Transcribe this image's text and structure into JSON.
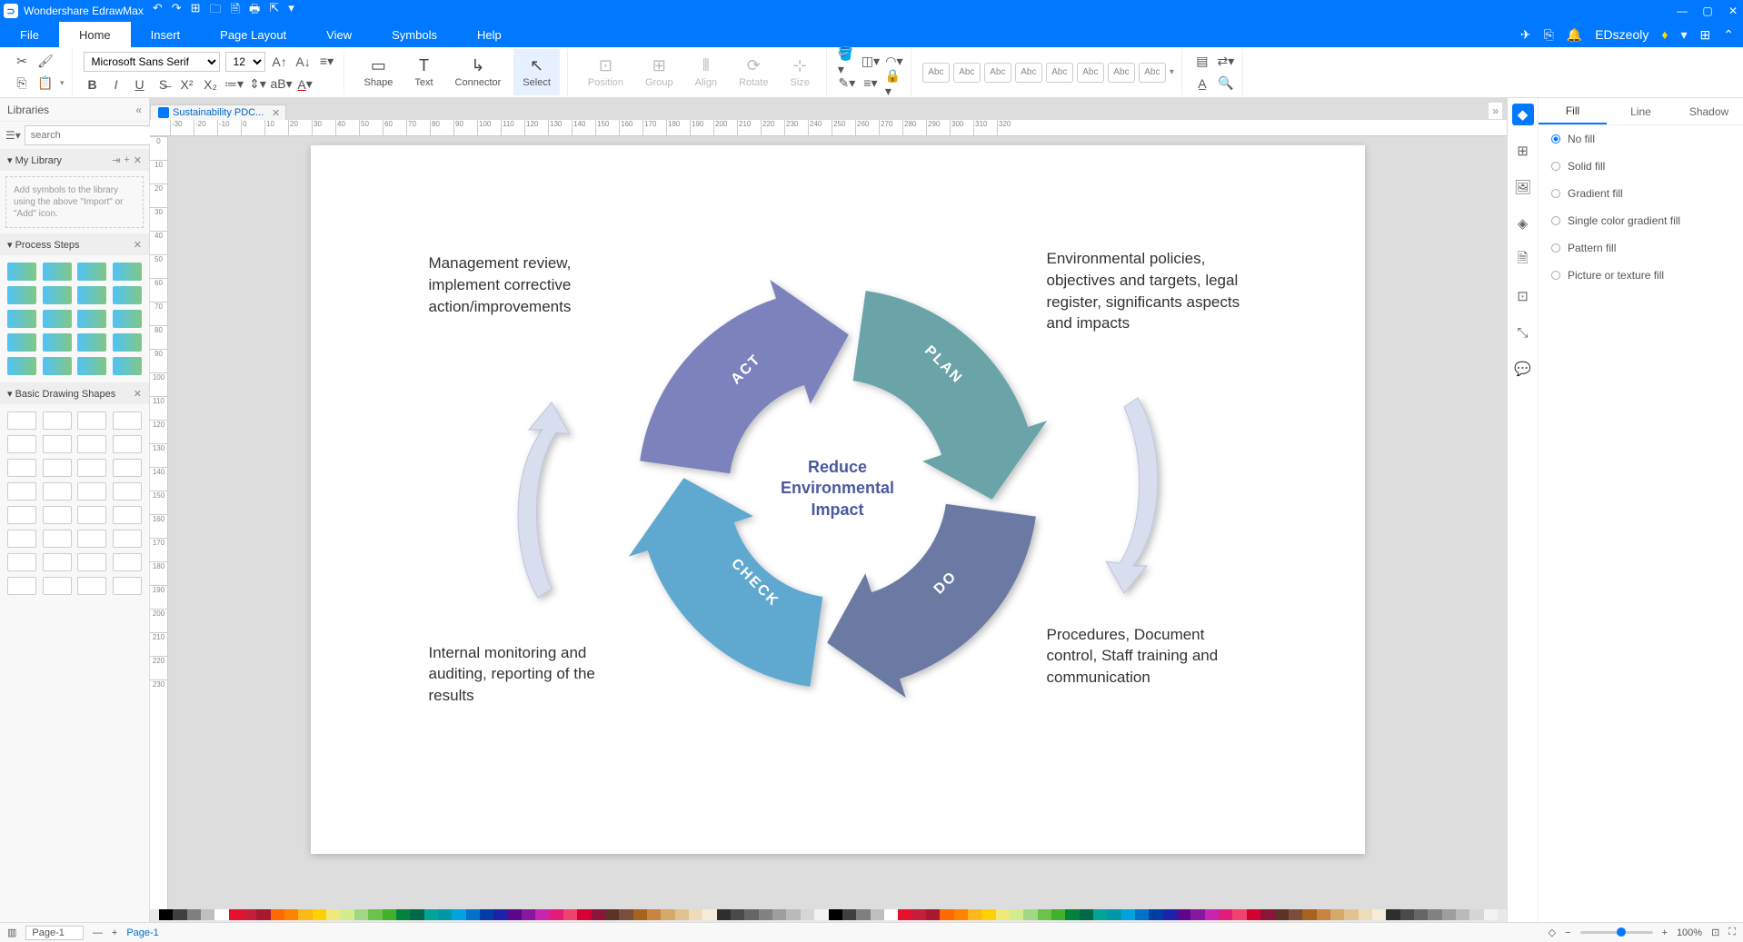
{
  "title_bar": {
    "app_name": "Wondershare EdrawMax",
    "qat_icons": [
      "↶",
      "↷",
      "⊞",
      "🗀",
      "🗎",
      "🖶",
      "⇱",
      "▾"
    ]
  },
  "menu": {
    "items": [
      "File",
      "Home",
      "Insert",
      "Page Layout",
      "View",
      "Symbols",
      "Help"
    ],
    "active_index": 1,
    "user": "EDszeoly"
  },
  "ribbon": {
    "font_name": "Microsoft Sans Serif",
    "font_size": "12",
    "shape_label": "Shape",
    "text_label": "Text",
    "connector_label": "Connector",
    "select_label": "Select",
    "position_label": "Position",
    "group_label": "Group",
    "align_label": "Align",
    "rotate_label": "Rotate",
    "size_label": "Size",
    "style_swatches": [
      "Abc",
      "Abc",
      "Abc",
      "Abc",
      "Abc",
      "Abc",
      "Abc",
      "Abc"
    ]
  },
  "left_panel": {
    "title": "Libraries",
    "search_placeholder": "search",
    "my_library": "My Library",
    "placeholder": "Add symbols to the library using the above \"Import\" or \"Add\" icon.",
    "process_steps": "Process Steps",
    "basic_shapes": "Basic Drawing Shapes"
  },
  "document": {
    "tab_name": "Sustainability PDC...",
    "ruler_marks": [
      "-30",
      "-20",
      "-10",
      "0",
      "10",
      "20",
      "30",
      "40",
      "50",
      "60",
      "70",
      "80",
      "90",
      "100",
      "110",
      "120",
      "130",
      "140",
      "150",
      "160",
      "170",
      "180",
      "190",
      "200",
      "210",
      "220",
      "230",
      "240",
      "250",
      "260",
      "270",
      "280",
      "290",
      "300",
      "310",
      "320"
    ],
    "ruler_v": [
      "0",
      "10",
      "20",
      "30",
      "40",
      "50",
      "60",
      "70",
      "80",
      "90",
      "100",
      "110",
      "120",
      "130",
      "140",
      "150",
      "160",
      "170",
      "180",
      "190",
      "200",
      "210",
      "220",
      "230"
    ]
  },
  "diagram": {
    "center_text": "Reduce Environmental Impact",
    "segments": {
      "act": {
        "label": "ACT",
        "color": "#5fa8cf",
        "desc": "Management review, implement corrective action/improvements"
      },
      "plan": {
        "label": "PLAN",
        "color": "#7b82bb",
        "desc": "Environmental policies, objectives and targets, legal register, significants aspects and impacts"
      },
      "check": {
        "label": "CHECK",
        "color": "#6a7aa3",
        "desc": "Internal monitoring and auditing, reporting of the results"
      },
      "do": {
        "label": "DO",
        "color": "#6ba3a8",
        "desc": "Procedures, Document control, Staff training and communication"
      }
    },
    "side_arrow_color": "#d9deee"
  },
  "right_panel": {
    "tabs": [
      "Fill",
      "Line",
      "Shadow"
    ],
    "active_tab": 0,
    "options": [
      "No fill",
      "Solid fill",
      "Gradient fill",
      "Single color gradient fill",
      "Pattern fill",
      "Picture or texture fill"
    ],
    "selected_option": 0,
    "side_icons": [
      "◆",
      "⊞",
      "🖼",
      "◈",
      "🗎",
      "⇵",
      "⤡",
      "⊡"
    ]
  },
  "status_bar": {
    "page_select": "Page-1",
    "page_tab": "Page-1",
    "zoom": "100%"
  },
  "color_palette": [
    "#000000",
    "#3f3f3f",
    "#7f7f7f",
    "#bfbfbf",
    "#ffffff",
    "#e8112d",
    "#c41e3a",
    "#a6192e",
    "#ff6900",
    "#ff8200",
    "#ffb81c",
    "#ffd100",
    "#f0e87b",
    "#d4eb8e",
    "#a1d884",
    "#6cc24a",
    "#43b02a",
    "#00843d",
    "#006747",
    "#00a499",
    "#0097a9",
    "#00a3e0",
    "#0072ce",
    "#003da5",
    "#1e22aa",
    "#5c068c",
    "#87189d",
    "#c724b1",
    "#e31c79",
    "#ef426f",
    "#d50032",
    "#8a1538",
    "#5b3427",
    "#7c4d3a",
    "#a6631b",
    "#c88242",
    "#d4a96a",
    "#e1c391",
    "#eedcb8",
    "#f5ecd9",
    "#2e2e2e",
    "#4a4a4a",
    "#666666",
    "#828282",
    "#9e9e9e",
    "#bababa",
    "#d6d6d6",
    "#f2f2f2"
  ]
}
